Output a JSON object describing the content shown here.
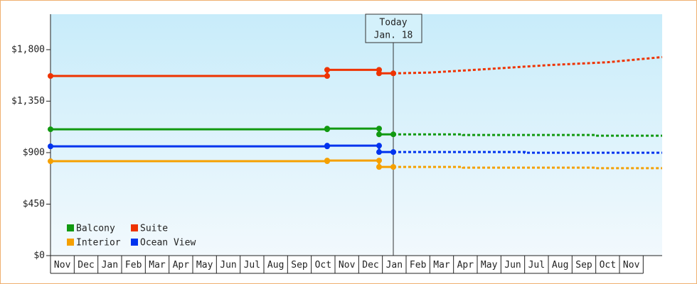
{
  "chart_data": {
    "type": "line",
    "xlim": [
      0,
      25.8
    ],
    "xticks": [
      {
        "value": 0,
        "label": "Nov"
      },
      {
        "value": 1,
        "label": "Dec"
      },
      {
        "value": 2,
        "label": "Jan"
      },
      {
        "value": 3,
        "label": "Feb"
      },
      {
        "value": 4,
        "label": "Mar"
      },
      {
        "value": 5,
        "label": "Apr"
      },
      {
        "value": 6,
        "label": "May"
      },
      {
        "value": 7,
        "label": "Jun"
      },
      {
        "value": 8,
        "label": "Jul"
      },
      {
        "value": 9,
        "label": "Aug"
      },
      {
        "value": 10,
        "label": "Sep"
      },
      {
        "value": 11,
        "label": "Oct"
      },
      {
        "value": 12,
        "label": "Nov"
      },
      {
        "value": 13,
        "label": "Dec"
      },
      {
        "value": 14,
        "label": "Jan"
      },
      {
        "value": 15,
        "label": "Feb"
      },
      {
        "value": 16,
        "label": "Mar"
      },
      {
        "value": 17,
        "label": "Apr"
      },
      {
        "value": 18,
        "label": "May"
      },
      {
        "value": 19,
        "label": "Jun"
      },
      {
        "value": 20,
        "label": "Jul"
      },
      {
        "value": 21,
        "label": "Aug"
      },
      {
        "value": 22,
        "label": "Sep"
      },
      {
        "value": 23,
        "label": "Oct"
      },
      {
        "value": 24,
        "label": "Nov"
      }
    ],
    "ylim": [
      0,
      2110
    ],
    "yticks": [
      {
        "value": 0,
        "label": "$0"
      },
      {
        "value": 450,
        "label": "$450"
      },
      {
        "value": 900,
        "label": "$900"
      },
      {
        "value": 1350,
        "label": "$1,350"
      },
      {
        "value": 1800,
        "label": "$1,800"
      }
    ],
    "annotation": {
      "x": 14.46,
      "label": "Today",
      "date": "Jan. 18"
    },
    "series": [
      {
        "name": "Balcony",
        "color": "#119911",
        "x": [
          0,
          11.67,
          11.67,
          13.86,
          13.86,
          14.46
        ],
        "values": [
          1104,
          1104,
          1110,
          1110,
          1060,
          1060
        ],
        "forecast_x": [
          14.46,
          17.4,
          17.4,
          23,
          23,
          25.8
        ],
        "forecast_values": [
          1060,
          1060,
          1054,
          1054,
          1048,
          1048
        ]
      },
      {
        "name": "Suite",
        "color": "#ee3300",
        "x": [
          0,
          11.67,
          11.67,
          13.86,
          13.86,
          14.46
        ],
        "values": [
          1570,
          1570,
          1624,
          1624,
          1593,
          1593
        ],
        "forecast_x": [
          14.46,
          16,
          18,
          21,
          23.5,
          25.8
        ],
        "forecast_values": [
          1593,
          1600,
          1625,
          1665,
          1690,
          1735
        ]
      },
      {
        "name": "Interior",
        "color": "#f5a000",
        "x": [
          0,
          11.67,
          11.67,
          13.86,
          13.86,
          14.46
        ],
        "values": [
          825,
          825,
          831,
          831,
          775,
          775
        ],
        "forecast_x": [
          14.46,
          17.4,
          17.4,
          23,
          23,
          25.8
        ],
        "forecast_values": [
          775,
          775,
          769,
          769,
          764,
          764
        ]
      },
      {
        "name": "Ocean View",
        "color": "#0033ee",
        "x": [
          0,
          11.67,
          11.67,
          13.86,
          13.86,
          14.46
        ],
        "values": [
          955,
          955,
          961,
          961,
          905,
          905
        ],
        "forecast_x": [
          14.46,
          20,
          20,
          25.8
        ],
        "forecast_values": [
          905,
          905,
          899,
          899
        ]
      }
    ]
  }
}
